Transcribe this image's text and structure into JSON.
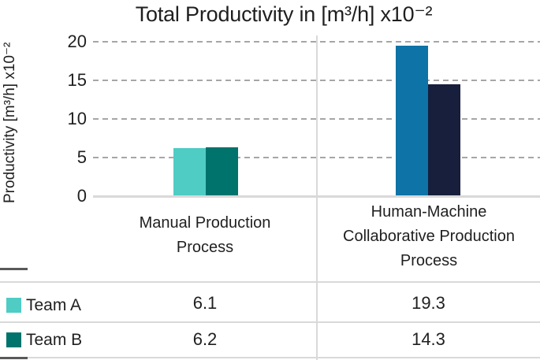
{
  "chart_data": {
    "type": "bar",
    "title": "Total Productivity in [m³/h] x10⁻²",
    "ylabel": "Productivity [m³/h] x10⁻²",
    "xlabel": "",
    "categories": [
      "Manual Production Process",
      "Human-Machine Collaborative Production Process"
    ],
    "series": [
      {
        "name": "Team A",
        "values": [
          6.1,
          19.3
        ],
        "bar_colors": [
          "#4fccc4",
          "#0e73a6"
        ],
        "legend_color": "#4fccc4"
      },
      {
        "name": "Team B",
        "values": [
          6.2,
          14.3
        ],
        "bar_colors": [
          "#00736d",
          "#181f3d"
        ],
        "legend_color": "#00736d"
      }
    ],
    "ylim": [
      0,
      20
    ],
    "yticks": [
      0,
      5,
      10,
      15,
      20
    ],
    "grid": true,
    "grid_style": "dashed horizontal gray",
    "legend_position": "data table left column",
    "data_table": {
      "rows": [
        {
          "label": "Team A",
          "values": [
            "6.1",
            "19.3"
          ]
        },
        {
          "label": "Team B",
          "values": [
            "6.2",
            "14.3"
          ]
        }
      ]
    }
  },
  "colors": {
    "team_a_manual": "#4fccc4",
    "team_b_manual": "#00736d",
    "team_a_collaborative": "#0e73a6",
    "team_b_collaborative": "#181f3d",
    "gridline": "#a6a6a6",
    "divider": "#d9d9d9",
    "text": "#1f1f1f"
  }
}
